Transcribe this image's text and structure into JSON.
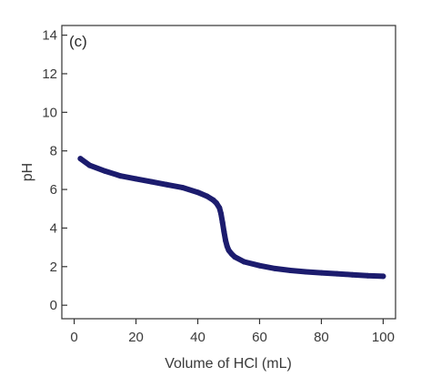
{
  "chart_data": {
    "type": "line",
    "panel_label": "(c)",
    "xlabel": "Volume of HCl (mL)",
    "ylabel": "pH",
    "xlim": [
      -4,
      104
    ],
    "ylim": [
      -0.7,
      14.5
    ],
    "xticks": [
      0,
      20,
      40,
      60,
      80,
      100
    ],
    "yticks": [
      0,
      2,
      4,
      6,
      8,
      10,
      12,
      14
    ],
    "grid": false,
    "series": [
      {
        "color": "#1c1c6e",
        "x": [
          2,
          5,
          10,
          15,
          20,
          25,
          30,
          35,
          40,
          43,
          45,
          46,
          47,
          47.5,
          48,
          48.5,
          49,
          49.5,
          50,
          51,
          52,
          55,
          60,
          65,
          70,
          75,
          80,
          85,
          90,
          95,
          100
        ],
        "y": [
          7.6,
          7.25,
          6.95,
          6.7,
          6.55,
          6.4,
          6.25,
          6.1,
          5.85,
          5.65,
          5.45,
          5.3,
          5.05,
          4.75,
          4.3,
          3.8,
          3.35,
          3.05,
          2.85,
          2.65,
          2.5,
          2.25,
          2.05,
          1.9,
          1.8,
          1.73,
          1.68,
          1.63,
          1.58,
          1.53,
          1.5
        ]
      }
    ]
  }
}
